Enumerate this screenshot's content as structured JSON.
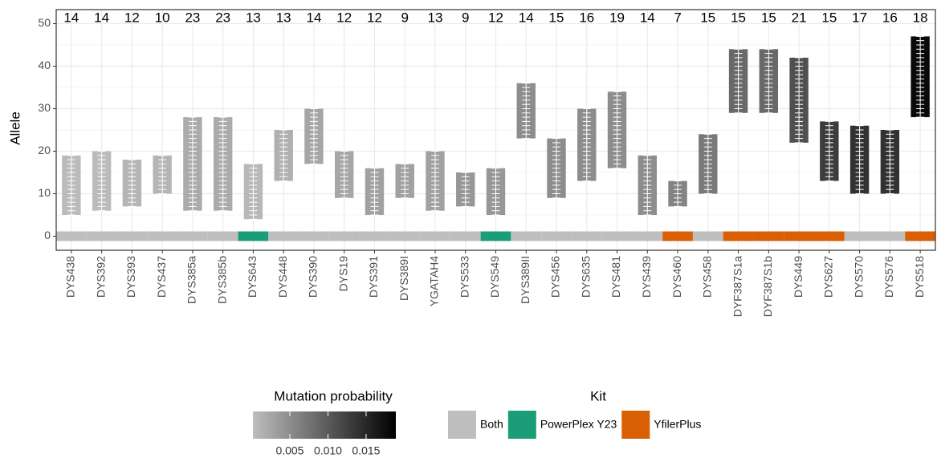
{
  "chart_data": {
    "type": "range",
    "y_label": "Allele",
    "categories": [
      "DYS438",
      "DYS392",
      "DYS393",
      "DYS437",
      "DYS385a",
      "DYS385b",
      "DYS643",
      "DYS448",
      "DYS390",
      "DYS19",
      "DYS391",
      "DYS389I",
      "YGATAH4",
      "DYS533",
      "DYS549",
      "DYS389II",
      "DYS456",
      "DYS635",
      "DYS481",
      "DYS439",
      "DYS460",
      "DYS458",
      "DYF387S1a",
      "DYF387S1b",
      "DYS449",
      "DYS627",
      "DYS570",
      "DYS576",
      "DYS518"
    ],
    "min": [
      5,
      6,
      7,
      10,
      6,
      6,
      4,
      13,
      17,
      9,
      5,
      9,
      6,
      7,
      5,
      23,
      9,
      13,
      16,
      5,
      7,
      10,
      29,
      29,
      22,
      13,
      10,
      10,
      28
    ],
    "max": [
      19,
      20,
      18,
      19,
      28,
      28,
      17,
      25,
      30,
      20,
      16,
      17,
      20,
      15,
      16,
      36,
      23,
      30,
      34,
      19,
      13,
      24,
      44,
      44,
      42,
      27,
      26,
      25,
      47
    ],
    "counts": [
      14,
      14,
      12,
      10,
      23,
      23,
      13,
      13,
      14,
      12,
      12,
      9,
      13,
      9,
      12,
      14,
      15,
      16,
      19,
      14,
      7,
      15,
      15,
      15,
      21,
      15,
      17,
      16,
      18
    ],
    "mutation_probability": [
      0.0005,
      0.0005,
      0.001,
      0.001,
      0.002,
      0.002,
      0.0008,
      0.0015,
      0.0025,
      0.0025,
      0.003,
      0.003,
      0.003,
      0.004,
      0.004,
      0.005,
      0.005,
      0.005,
      0.005,
      0.005,
      0.006,
      0.007,
      0.0085,
      0.0085,
      0.011,
      0.013,
      0.014,
      0.014,
      0.018
    ],
    "kit": [
      "Both",
      "Both",
      "Both",
      "Both",
      "Both",
      "Both",
      "PowerPlex Y23",
      "Both",
      "Both",
      "Both",
      "Both",
      "Both",
      "Both",
      "Both",
      "PowerPlex Y23",
      "Both",
      "Both",
      "Both",
      "Both",
      "Both",
      "YfilerPlus",
      "Both",
      "YfilerPlus",
      "YfilerPlus",
      "YfilerPlus",
      "YfilerPlus",
      "Both",
      "Both",
      "YfilerPlus"
    ],
    "ylim": [
      -3.3,
      53.3
    ],
    "yticks": [
      0,
      10,
      20,
      30,
      40,
      50
    ],
    "grid": true,
    "color_scale": {
      "title": "Mutation probability",
      "limits": [
        0.00016,
        0.0189
      ],
      "colors": [
        "#bebebe",
        "#000000"
      ],
      "ticks": [
        {
          "value": 0.005,
          "label": "0.005"
        },
        {
          "value": 0.01,
          "label": "0.010"
        },
        {
          "value": 0.015,
          "label": "0.015"
        }
      ]
    },
    "kit_legend": {
      "title": "Kit",
      "series": [
        {
          "name": "Both",
          "color": "#bebebe"
        },
        {
          "name": "PowerPlex Y23",
          "color": "#1b9e77"
        },
        {
          "name": "YfilerPlus",
          "color": "#d95f02"
        }
      ]
    }
  }
}
